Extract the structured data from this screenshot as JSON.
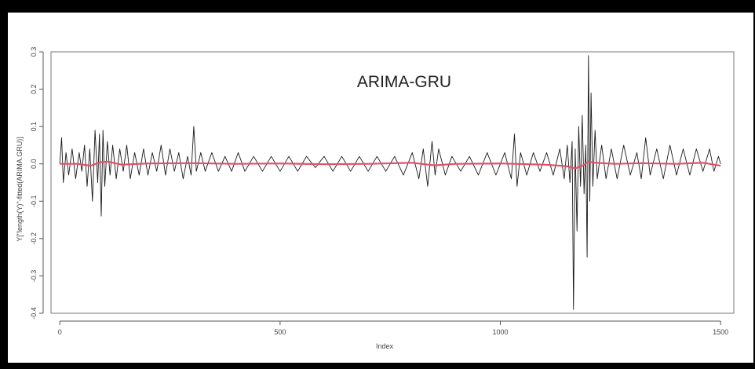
{
  "chart_data": {
    "type": "line",
    "title": "ARIMA-GRU",
    "xlabel": "Index",
    "ylabel": "Y[\"length(Y)\"-fitted(ARIMA.GRU)]",
    "xlim": [
      -20,
      1530
    ],
    "ylim": [
      -0.4,
      0.3
    ],
    "x_ticks": [
      0,
      500,
      1000,
      1500
    ],
    "y_ticks": [
      -0.4,
      -0.3,
      -0.2,
      -0.1,
      0.0,
      0.1,
      0.2,
      0.3
    ],
    "grid": false,
    "legend": "none",
    "series": [
      {
        "color": "#1a1a1a",
        "points": [
          [
            0,
            0.0
          ],
          [
            4,
            0.07
          ],
          [
            8,
            -0.05
          ],
          [
            14,
            0.03
          ],
          [
            20,
            -0.03
          ],
          [
            28,
            0.04
          ],
          [
            36,
            -0.04
          ],
          [
            44,
            0.03
          ],
          [
            50,
            -0.02
          ],
          [
            56,
            0.05
          ],
          [
            62,
            -0.06
          ],
          [
            68,
            0.04
          ],
          [
            74,
            -0.1
          ],
          [
            80,
            0.09
          ],
          [
            86,
            -0.05
          ],
          [
            90,
            0.08
          ],
          [
            94,
            -0.14
          ],
          [
            98,
            0.09
          ],
          [
            102,
            -0.06
          ],
          [
            108,
            0.06
          ],
          [
            114,
            -0.03
          ],
          [
            120,
            0.05
          ],
          [
            128,
            -0.04
          ],
          [
            136,
            0.04
          ],
          [
            144,
            -0.02
          ],
          [
            152,
            0.05
          ],
          [
            160,
            -0.04
          ],
          [
            170,
            0.03
          ],
          [
            180,
            -0.03
          ],
          [
            190,
            0.04
          ],
          [
            200,
            -0.03
          ],
          [
            210,
            0.03
          ],
          [
            220,
            -0.02
          ],
          [
            230,
            0.05
          ],
          [
            240,
            -0.03
          ],
          [
            250,
            0.04
          ],
          [
            260,
            -0.02
          ],
          [
            270,
            0.03
          ],
          [
            280,
            -0.04
          ],
          [
            290,
            0.02
          ],
          [
            298,
            -0.03
          ],
          [
            304,
            0.1
          ],
          [
            310,
            -0.02
          ],
          [
            320,
            0.03
          ],
          [
            330,
            -0.02
          ],
          [
            345,
            0.03
          ],
          [
            360,
            -0.02
          ],
          [
            375,
            0.02
          ],
          [
            390,
            -0.02
          ],
          [
            405,
            0.03
          ],
          [
            420,
            -0.02
          ],
          [
            440,
            0.02
          ],
          [
            460,
            -0.02
          ],
          [
            480,
            0.02
          ],
          [
            500,
            -0.02
          ],
          [
            520,
            0.02
          ],
          [
            540,
            -0.02
          ],
          [
            560,
            0.02
          ],
          [
            580,
            -0.01
          ],
          [
            600,
            0.02
          ],
          [
            620,
            -0.02
          ],
          [
            640,
            0.02
          ],
          [
            660,
            -0.02
          ],
          [
            680,
            0.02
          ],
          [
            700,
            -0.02
          ],
          [
            720,
            0.02
          ],
          [
            740,
            -0.02
          ],
          [
            760,
            0.02
          ],
          [
            780,
            -0.03
          ],
          [
            800,
            0.03
          ],
          [
            815,
            -0.04
          ],
          [
            825,
            0.04
          ],
          [
            835,
            -0.06
          ],
          [
            845,
            0.06
          ],
          [
            852,
            -0.03
          ],
          [
            860,
            0.04
          ],
          [
            875,
            -0.03
          ],
          [
            890,
            0.02
          ],
          [
            910,
            -0.02
          ],
          [
            930,
            0.02
          ],
          [
            950,
            -0.03
          ],
          [
            970,
            0.03
          ],
          [
            990,
            -0.03
          ],
          [
            1010,
            0.03
          ],
          [
            1025,
            -0.04
          ],
          [
            1032,
            0.08
          ],
          [
            1038,
            -0.06
          ],
          [
            1046,
            0.03
          ],
          [
            1060,
            -0.03
          ],
          [
            1075,
            0.03
          ],
          [
            1090,
            -0.02
          ],
          [
            1105,
            0.03
          ],
          [
            1120,
            -0.03
          ],
          [
            1135,
            0.04
          ],
          [
            1145,
            -0.04
          ],
          [
            1152,
            0.05
          ],
          [
            1158,
            -0.05
          ],
          [
            1163,
            0.06
          ],
          [
            1166,
            -0.39
          ],
          [
            1170,
            0.04
          ],
          [
            1174,
            -0.18
          ],
          [
            1178,
            0.1
          ],
          [
            1182,
            -0.06
          ],
          [
            1186,
            0.13
          ],
          [
            1190,
            -0.08
          ],
          [
            1194,
            0.05
          ],
          [
            1197,
            -0.25
          ],
          [
            1200,
            0.29
          ],
          [
            1203,
            -0.1
          ],
          [
            1206,
            0.19
          ],
          [
            1210,
            -0.06
          ],
          [
            1215,
            0.09
          ],
          [
            1220,
            -0.04
          ],
          [
            1230,
            0.05
          ],
          [
            1240,
            -0.04
          ],
          [
            1252,
            0.04
          ],
          [
            1265,
            -0.04
          ],
          [
            1280,
            0.05
          ],
          [
            1295,
            -0.03
          ],
          [
            1310,
            0.03
          ],
          [
            1320,
            -0.04
          ],
          [
            1330,
            0.07
          ],
          [
            1340,
            -0.03
          ],
          [
            1355,
            0.04
          ],
          [
            1370,
            -0.04
          ],
          [
            1385,
            0.05
          ],
          [
            1400,
            -0.03
          ],
          [
            1415,
            0.04
          ],
          [
            1430,
            -0.03
          ],
          [
            1445,
            0.04
          ],
          [
            1460,
            -0.02
          ],
          [
            1475,
            0.04
          ],
          [
            1485,
            -0.02
          ],
          [
            1495,
            0.02
          ],
          [
            1500,
            0.0
          ]
        ]
      },
      {
        "color": "#e0506a",
        "points": [
          [
            0,
            0.0
          ],
          [
            40,
            0.0
          ],
          [
            70,
            -0.005
          ],
          [
            90,
            0.004
          ],
          [
            110,
            0.006
          ],
          [
            140,
            -0.002
          ],
          [
            200,
            0.001
          ],
          [
            300,
            0.002
          ],
          [
            400,
            0.0
          ],
          [
            500,
            0.001
          ],
          [
            600,
            -0.001
          ],
          [
            700,
            0.0
          ],
          [
            800,
            0.003
          ],
          [
            850,
            -0.004
          ],
          [
            900,
            0.0
          ],
          [
            1000,
            0.001
          ],
          [
            1100,
            -0.002
          ],
          [
            1150,
            -0.006
          ],
          [
            1170,
            -0.012
          ],
          [
            1185,
            -0.006
          ],
          [
            1200,
            0.006
          ],
          [
            1215,
            0.003
          ],
          [
            1260,
            0.0
          ],
          [
            1320,
            0.002
          ],
          [
            1400,
            0.0
          ],
          [
            1460,
            0.003
          ],
          [
            1500,
            -0.005
          ]
        ]
      }
    ]
  }
}
